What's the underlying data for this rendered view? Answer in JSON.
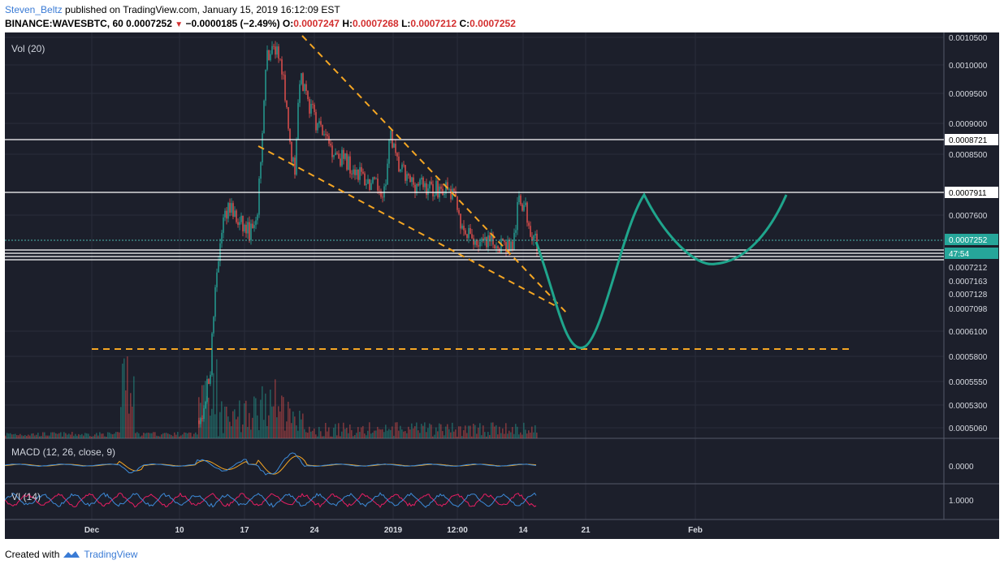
{
  "header": {
    "author": "Steven_Beltz",
    "published_text": " published on TradingView.com, January 15, 2019 16:12:09 EST",
    "symbol": "BINANCE:WAVESBTC, 60",
    "last": "0.0007252",
    "change": "−0.0000185 (−2.49%)",
    "o_label": "O:",
    "o": "0.0007247",
    "h_label": "H:",
    "h": "0.0007268",
    "l_label": "L:",
    "l": "0.0007212",
    "c_label": "C:",
    "c": "0.0007252"
  },
  "footer": {
    "created_with": "Created with",
    "brand": "TradingView"
  },
  "colors": {
    "background": "#1c1f2b",
    "grid": "#2a2e3b",
    "up": "#26a69a",
    "down": "#ef5350",
    "projection": "#1fa58c",
    "pattern": "#f5a623",
    "macd": "#3d8bd9",
    "signal": "#f5a623",
    "vi_plus": "#3d8bd9",
    "vi_minus": "#e91e63"
  },
  "chart_data": {
    "type": "candlestick",
    "symbol": "BINANCE:WAVESBTC",
    "interval": "60",
    "price_axis": [
      "0.0010500",
      "0.0010000",
      "0.0009500",
      "0.0009000",
      "0.0008500",
      "0.0007600",
      "0.0006100",
      "0.0005800",
      "0.0005550",
      "0.0005300",
      "0.0005060"
    ],
    "price_axis_values": [
      0.00105,
      0.001,
      0.00095,
      0.0009,
      0.00085,
      0.00076,
      0.00061,
      0.00058,
      0.000555,
      0.00053,
      0.000506
    ],
    "level_labels": [
      {
        "label": "0.0008721",
        "style": "white"
      },
      {
        "label": "0.0007911",
        "style": "white"
      },
      {
        "label": "0.0007252",
        "style": "current"
      },
      {
        "label": "47:54",
        "style": "countdown"
      },
      {
        "label": "0.0007212",
        "style": "white"
      },
      {
        "label": "0.0007163",
        "style": "white"
      },
      {
        "label": "0.0007128",
        "style": "white"
      },
      {
        "label": "0.0007098",
        "style": "white"
      }
    ],
    "time_axis": [
      "Dec",
      "10",
      "17",
      "24",
      "2019",
      "12:00",
      "14",
      "21",
      "Feb"
    ],
    "horizontal_levels": [
      0.0008721,
      0.0007911,
      0.0007212,
      0.0007163,
      0.0007128,
      0.0007098
    ],
    "support_line": 0.00059,
    "panels": [
      {
        "name": "Vol (20)",
        "axis_label": ""
      },
      {
        "name": "MACD (12, 26, close, 9)",
        "axis_label": "0.0000"
      },
      {
        "name": "VI (14)",
        "axis_label": "1.0000"
      }
    ],
    "annotations": [
      "falling wedge (dashed orange)",
      "projected price path (teal curve)"
    ]
  }
}
